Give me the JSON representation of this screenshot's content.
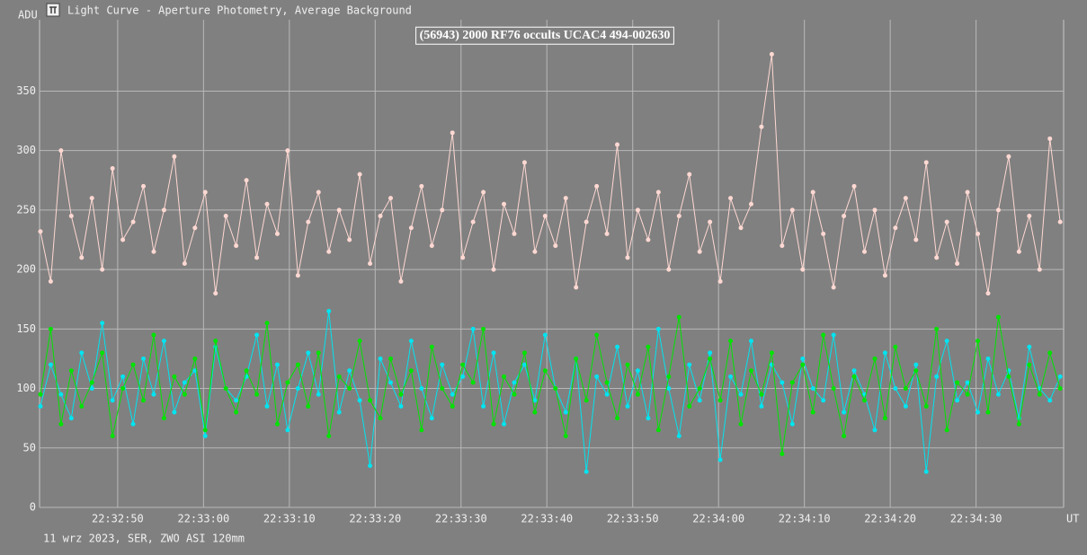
{
  "window_title": "Light Curve - Aperture Photometry, Average Background",
  "footer": "11 wrz 2023, SER, ZWO ASI 120mm",
  "chart_data": {
    "type": "line",
    "title": "(56943) 2000 RF76 occults UCAC4 494-002630",
    "y_label": "ADU",
    "x_label": "UT",
    "ylim": [
      0,
      410
    ],
    "yticks": [
      0,
      50,
      100,
      150,
      200,
      250,
      300,
      350
    ],
    "xlim": [
      81160.9,
      81280.2
    ],
    "xticks": [
      {
        "value": 81170,
        "label": "22:32:50"
      },
      {
        "value": 81180,
        "label": "22:33:00"
      },
      {
        "value": 81190,
        "label": "22:33:10"
      },
      {
        "value": 81200,
        "label": "22:33:20"
      },
      {
        "value": 81210,
        "label": "22:33:30"
      },
      {
        "value": 81220,
        "label": "22:33:40"
      },
      {
        "value": 81230,
        "label": "22:33:50"
      },
      {
        "value": 81240,
        "label": "22:34:00"
      },
      {
        "value": 81250,
        "label": "22:34:10"
      },
      {
        "value": 81260,
        "label": "22:34:20"
      },
      {
        "value": 81270,
        "label": "22:34:30"
      }
    ],
    "grid": true,
    "x": [
      81161,
      81162.2,
      81163.4,
      81164.6,
      81165.8,
      81167,
      81168.2,
      81169.4,
      81170.6,
      81171.8,
      81173,
      81174.2,
      81175.4,
      81176.6,
      81177.8,
      81179,
      81180.2,
      81181.4,
      81182.6,
      81183.8,
      81185,
      81186.2,
      81187.4,
      81188.6,
      81189.8,
      81191,
      81192.2,
      81193.4,
      81194.6,
      81195.8,
      81197,
      81198.2,
      81199.4,
      81200.6,
      81201.8,
      81203,
      81204.2,
      81205.4,
      81206.6,
      81207.8,
      81209,
      81210.2,
      81211.4,
      81212.6,
      81213.8,
      81215,
      81216.2,
      81217.4,
      81218.6,
      81219.8,
      81221,
      81222.2,
      81223.4,
      81224.6,
      81225.8,
      81227,
      81228.2,
      81229.4,
      81230.6,
      81231.8,
      81233,
      81234.2,
      81235.4,
      81236.6,
      81237.8,
      81239,
      81240.2,
      81241.4,
      81242.6,
      81243.8,
      81245,
      81246.2,
      81247.4,
      81248.6,
      81249.8,
      81251,
      81252.2,
      81253.4,
      81254.6,
      81255.8,
      81257,
      81258.2,
      81259.4,
      81260.6,
      81261.8,
      81263,
      81264.2,
      81265.4,
      81266.6,
      81267.8,
      81269,
      81270.2,
      81271.4,
      81272.6,
      81273.8,
      81275,
      81276.2,
      81277.4,
      81278.6,
      81279.8
    ],
    "series": [
      {
        "color": "#ffd8d2",
        "values": [
          232,
          190,
          300,
          245,
          210,
          260,
          200,
          285,
          225,
          240,
          270,
          215,
          250,
          295,
          205,
          235,
          265,
          180,
          245,
          220,
          275,
          210,
          255,
          230,
          300,
          195,
          240,
          265,
          215,
          250,
          225,
          280,
          205,
          245,
          260,
          190,
          235,
          270,
          220,
          250,
          315,
          210,
          240,
          265,
          200,
          255,
          230,
          290,
          215,
          245,
          220,
          260,
          185,
          240,
          270,
          230,
          305,
          210,
          250,
          225,
          265,
          200,
          245,
          280,
          215,
          240,
          190,
          260,
          235,
          255,
          320,
          381,
          220,
          250,
          200,
          265,
          230,
          185,
          245,
          270,
          215,
          250,
          195,
          235,
          260,
          225,
          290,
          210,
          240,
          205,
          265,
          230,
          180,
          250,
          295,
          215,
          245,
          200,
          310,
          240
        ]
      },
      {
        "color": "#00e4f0",
        "values": [
          85,
          120,
          95,
          75,
          130,
          100,
          155,
          90,
          110,
          70,
          125,
          95,
          140,
          80,
          105,
          115,
          60,
          135,
          100,
          90,
          110,
          145,
          85,
          120,
          65,
          100,
          130,
          95,
          165,
          80,
          115,
          90,
          35,
          125,
          105,
          85,
          140,
          100,
          75,
          120,
          95,
          110,
          150,
          85,
          130,
          70,
          105,
          120,
          90,
          145,
          100,
          80,
          125,
          30,
          110,
          95,
          135,
          85,
          115,
          75,
          150,
          100,
          60,
          120,
          90,
          130,
          40,
          110,
          95,
          140,
          85,
          120,
          105,
          70,
          125,
          100,
          90,
          145,
          80,
          115,
          95,
          65,
          130,
          100,
          85,
          120,
          30,
          110,
          140,
          90,
          105,
          80,
          125,
          95,
          115,
          75,
          135,
          100,
          90,
          110
        ]
      },
      {
        "color": "#00e400",
        "values": [
          95,
          150,
          70,
          115,
          85,
          105,
          130,
          60,
          100,
          120,
          90,
          145,
          75,
          110,
          95,
          125,
          65,
          140,
          100,
          80,
          115,
          95,
          155,
          70,
          105,
          120,
          85,
          130,
          60,
          110,
          100,
          140,
          90,
          75,
          125,
          95,
          115,
          65,
          135,
          100,
          85,
          120,
          105,
          150,
          70,
          110,
          95,
          130,
          80,
          115,
          100,
          60,
          125,
          90,
          145,
          105,
          75,
          120,
          95,
          135,
          65,
          110,
          160,
          85,
          100,
          125,
          90,
          140,
          70,
          115,
          95,
          130,
          45,
          105,
          120,
          80,
          145,
          100,
          60,
          110,
          90,
          125,
          75,
          135,
          100,
          115,
          85,
          150,
          65,
          105,
          95,
          140,
          80,
          160,
          110,
          70,
          120,
          95,
          130,
          100
        ]
      }
    ]
  }
}
